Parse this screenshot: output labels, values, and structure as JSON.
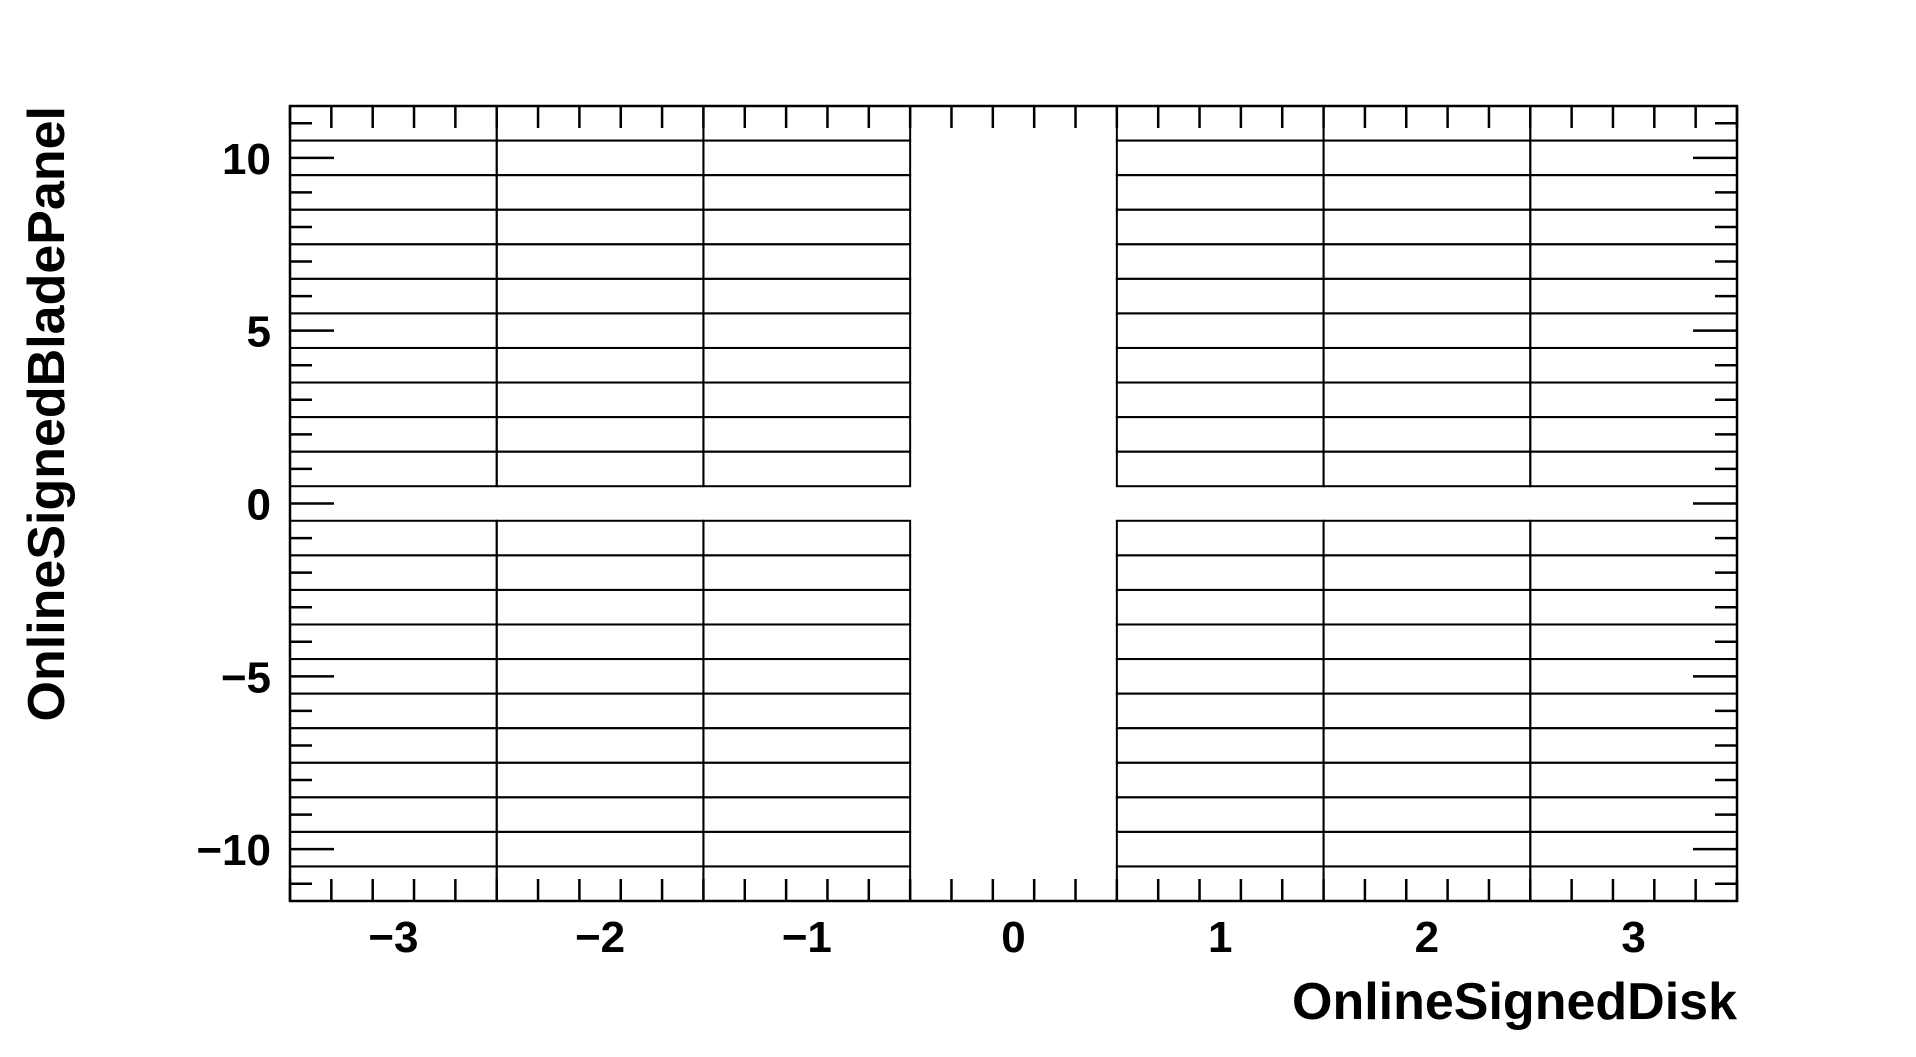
{
  "chart_data": {
    "type": "table",
    "xlabel": "OnlineSignedDisk",
    "ylabel": "OnlineSignedBladePanel",
    "xlim": [
      -3.5,
      3.5
    ],
    "ylim": [
      -11.5,
      11.5
    ],
    "x_ticks": [
      -3,
      -2,
      -1,
      0,
      1,
      2,
      3
    ],
    "x_tick_labels": [
      "−3",
      "−2",
      "−1",
      "0",
      "1",
      "2",
      "3"
    ],
    "y_ticks": [
      -10,
      -5,
      0,
      5,
      10
    ],
    "y_tick_labels": [
      "−10",
      "−5",
      "0",
      "5",
      "10"
    ],
    "x_bin_edges": [
      -3.5,
      -2.5,
      -1.5,
      -0.5,
      0.5,
      1.5,
      2.5,
      3.5
    ],
    "y_bin_edges": [
      -11.5,
      -10.5,
      -9.5,
      -8.5,
      -7.5,
      -6.5,
      -5.5,
      -4.5,
      -3.5,
      -2.5,
      -1.5,
      -0.5,
      0.5,
      1.5,
      2.5,
      3.5,
      4.5,
      5.5,
      6.5,
      7.5,
      8.5,
      9.5,
      10.5,
      11.5
    ],
    "empty_x_bins": [
      0
    ],
    "empty_y_bins": [
      0
    ],
    "grid": false,
    "legend": "none"
  }
}
